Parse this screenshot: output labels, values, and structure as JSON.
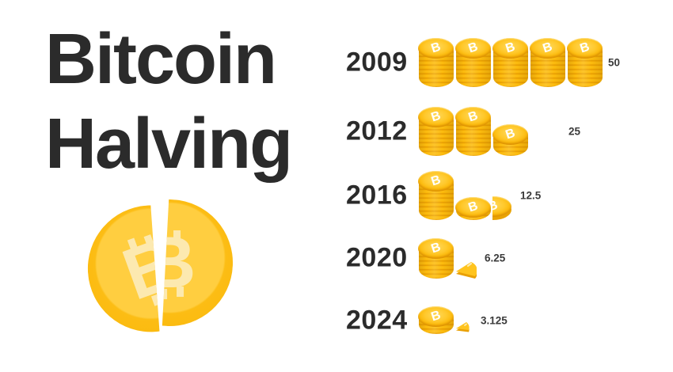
{
  "title": {
    "line1": "Bitcoin",
    "line2": "Halving"
  },
  "coin_symbol": "B",
  "rows": [
    {
      "year": "2009",
      "amount": "50",
      "pieces": [
        {
          "type": "stack",
          "coins": 9
        },
        {
          "type": "stack",
          "coins": 9
        },
        {
          "type": "stack",
          "coins": 9
        },
        {
          "type": "stack",
          "coins": 9
        },
        {
          "type": "stack",
          "coins": 9
        }
      ]
    },
    {
      "year": "2012",
      "amount": "25",
      "pieces": [
        {
          "type": "stack",
          "coins": 9
        },
        {
          "type": "stack",
          "coins": 9
        },
        {
          "type": "stack",
          "coins": 5
        }
      ]
    },
    {
      "year": "2016",
      "amount": "12.5",
      "pieces": [
        {
          "type": "stack",
          "coins": 9
        },
        {
          "type": "stack",
          "coins": 3
        },
        {
          "type": "half"
        }
      ]
    },
    {
      "year": "2020",
      "amount": "6.25",
      "pieces": [
        {
          "type": "stack",
          "coins": 7
        },
        {
          "type": "quarter"
        }
      ]
    },
    {
      "year": "2024",
      "amount": "3.125",
      "pieces": [
        {
          "type": "stack",
          "coins": 4
        },
        {
          "type": "sliver"
        }
      ]
    }
  ],
  "colors": {
    "coin_amber": "#FCBD14",
    "coin_face_light": "#FFCE40",
    "coin_symbol_pale": "#FCE9B0",
    "stack_light": "#F9B406",
    "stack_dark": "#E9A004",
    "text_dark": "#2b2b2b"
  },
  "chart_data": {
    "type": "bar",
    "variant": "pictogram-coin-stacks",
    "title": "Bitcoin Halving",
    "categories": [
      "2009",
      "2012",
      "2016",
      "2020",
      "2024"
    ],
    "values": [
      50,
      25,
      12.5,
      6.25,
      3.125
    ],
    "value_labels": [
      "50",
      "25",
      "12.5",
      "6.25",
      "3.125"
    ],
    "xlabel": "",
    "ylabel": "",
    "legend": false,
    "grid": false
  }
}
